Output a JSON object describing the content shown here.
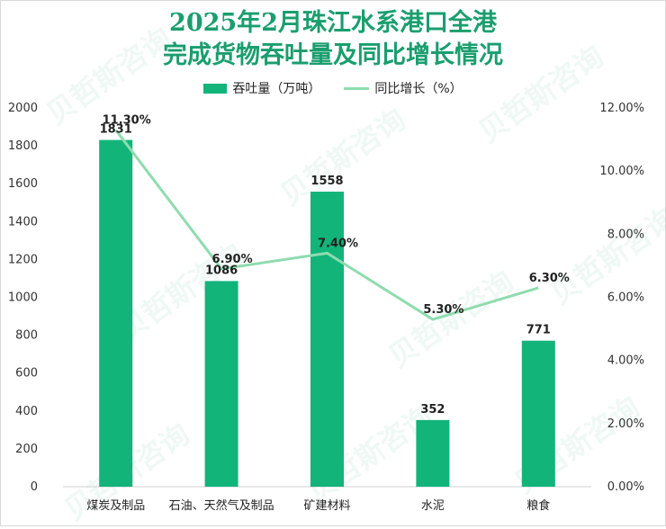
{
  "title_line1": "2025年2月珠江水系港口全港",
  "title_line2": "完成货物吞吐量及同比增长情况",
  "watermark_text": "贝哲斯咨询",
  "colors": {
    "bar": "#12b47a",
    "line": "#8fdcaf",
    "title": "#1a9e6e"
  },
  "chart_data": {
    "type": "bar",
    "categories": [
      "煤炭及制品",
      "石油、天然气及制品",
      "矿建材料",
      "水泥",
      "粮食"
    ],
    "series": [
      {
        "name": "吞吐量（万吨）",
        "type": "bar",
        "axis": "left",
        "values": [
          1831,
          1086,
          1558,
          352,
          771
        ],
        "labels": [
          "1831",
          "1086",
          "1558",
          "352",
          "771"
        ]
      },
      {
        "name": "同比增长（%）",
        "type": "line",
        "axis": "right",
        "values": [
          11.3,
          6.9,
          7.4,
          5.3,
          6.3
        ],
        "labels": [
          "11.30%",
          "6.90%",
          "7.40%",
          "5.30%",
          "6.30%"
        ]
      }
    ],
    "ylim_left": [
      0,
      2000
    ],
    "ylim_right": [
      0,
      12
    ],
    "left_ticks": [
      "0",
      "200",
      "400",
      "600",
      "800",
      "1000",
      "1200",
      "1400",
      "1600",
      "1800",
      "2000"
    ],
    "right_ticks": [
      "0.00%",
      "2.00%",
      "4.00%",
      "6.00%",
      "8.00%",
      "10.00%",
      "12.00%"
    ],
    "legend_position": "top",
    "grid": false
  }
}
